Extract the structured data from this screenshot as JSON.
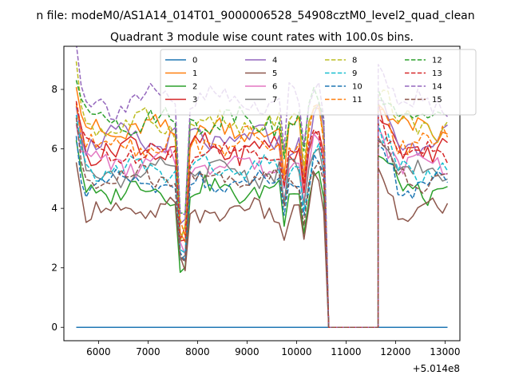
{
  "chart_data": {
    "type": "line",
    "suptitle": "n file: modeM0/AS1A14_014T01_9000006528_54908cztM0_level2_quad_clean",
    "title": "Quadrant 3 module wise count rates with 100.0s bins.",
    "xlabel": "",
    "ylabel": "",
    "x_offset_label": "+5.014e8",
    "xlim": [
      5300,
      13300
    ],
    "ylim": [
      -0.45,
      9.45
    ],
    "x_ticks": [
      6000,
      7000,
      8000,
      9000,
      10000,
      11000,
      12000,
      13000
    ],
    "x_tick_labels": [
      "6000",
      "7000",
      "8000",
      "9000",
      "10000",
      "11000",
      "12000",
      "13000"
    ],
    "y_ticks": [
      0,
      2,
      4,
      6,
      8
    ],
    "y_tick_labels": [
      "0",
      "2",
      "4",
      "6",
      "8"
    ],
    "grid": false,
    "legend_position": "top-center",
    "legend_ncol": 4,
    "segments": [
      {
        "x_start": 5550,
        "x_end": 7650
      },
      {
        "x_start": 7750,
        "x_end": 10550
      },
      {
        "x_start": 11650,
        "x_end": 13100
      }
    ],
    "flat_zero_range": [
      10650,
      11650
    ],
    "series": [
      {
        "name": "0",
        "color": "#1f77b4",
        "dashed": false,
        "base": 0,
        "dip": 0,
        "amp": 0
      },
      {
        "name": "1",
        "color": "#ff7f0e",
        "dashed": false,
        "base": 6.6,
        "dip": 3.2,
        "amp": 0.35
      },
      {
        "name": "2",
        "color": "#2ca02c",
        "dashed": false,
        "base": 4.6,
        "dip": 2.6,
        "amp": 0.3
      },
      {
        "name": "3",
        "color": "#d62728",
        "dashed": false,
        "base": 6.0,
        "dip": 3.0,
        "amp": 0.35
      },
      {
        "name": "4",
        "color": "#9467bd",
        "dashed": false,
        "base": 6.3,
        "dip": 3.1,
        "amp": 0.35
      },
      {
        "name": "5",
        "color": "#8c564b",
        "dashed": false,
        "base": 3.9,
        "dip": 2.0,
        "amp": 0.3
      },
      {
        "name": "6",
        "color": "#e377c2",
        "dashed": false,
        "base": 5.5,
        "dip": 2.8,
        "amp": 0.3
      },
      {
        "name": "7",
        "color": "#7f7f7f",
        "dashed": false,
        "base": 5.2,
        "dip": 2.6,
        "amp": 0.3
      },
      {
        "name": "8",
        "color": "#bcbd22",
        "dashed": true,
        "base": 6.8,
        "dip": 3.3,
        "amp": 0.35
      },
      {
        "name": "9",
        "color": "#17becf",
        "dashed": true,
        "base": 5.3,
        "dip": 2.7,
        "amp": 0.3
      },
      {
        "name": "10",
        "color": "#1f77b4",
        "dashed": true,
        "base": 4.8,
        "dip": 2.5,
        "amp": 0.3
      },
      {
        "name": "11",
        "color": "#ff7f0e",
        "dashed": true,
        "base": 6.2,
        "dip": 3.1,
        "amp": 0.35
      },
      {
        "name": "12",
        "color": "#2ca02c",
        "dashed": true,
        "base": 7.0,
        "dip": 3.4,
        "amp": 0.35
      },
      {
        "name": "13",
        "color": "#d62728",
        "dashed": true,
        "base": 5.9,
        "dip": 2.9,
        "amp": 0.3
      },
      {
        "name": "14",
        "color": "#9467bd",
        "dashed": true,
        "base": 7.6,
        "dip": 3.6,
        "amp": 0.4
      },
      {
        "name": "15",
        "color": "#8c564b",
        "dashed": true,
        "base": 5.0,
        "dip": 2.6,
        "amp": 0.3
      }
    ]
  }
}
